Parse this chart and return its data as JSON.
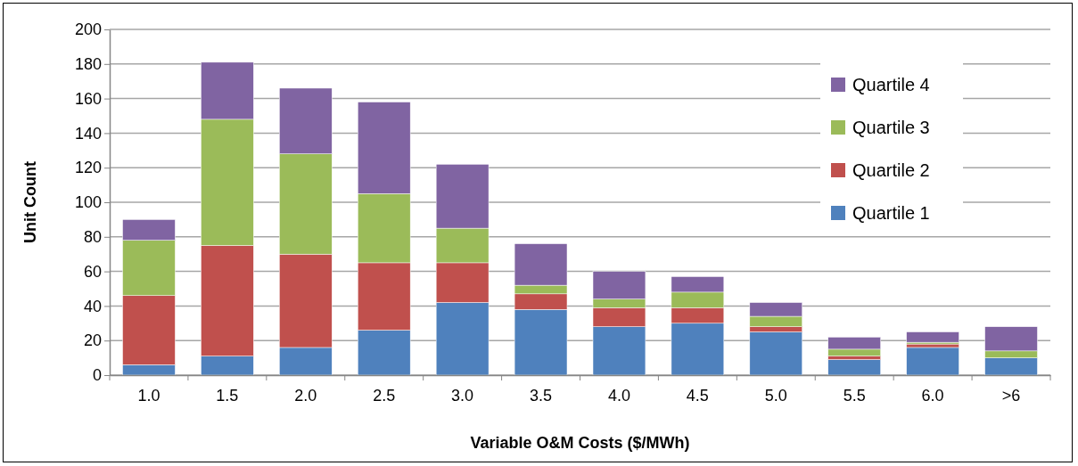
{
  "chart_data": {
    "type": "bar",
    "xlabel": "Variable O&M Costs ($/MWh)",
    "ylabel": "Unit Count",
    "categories": [
      "1.0",
      "1.5",
      "2.0",
      "2.5",
      "3.0",
      "3.5",
      "4.0",
      "4.5",
      "5.0",
      "5.5",
      "6.0",
      ">6"
    ],
    "stacked": true,
    "series": [
      {
        "name": "Quartile 1",
        "color": "#4f81bd",
        "values": [
          6,
          11,
          16,
          26,
          42,
          38,
          28,
          30,
          25,
          9,
          16,
          10
        ]
      },
      {
        "name": "Quartile 2",
        "color": "#c0504d",
        "values": [
          40,
          64,
          54,
          39,
          23,
          9,
          11,
          9,
          3,
          2,
          2,
          0
        ]
      },
      {
        "name": "Quartile 3",
        "color": "#9bbb59",
        "values": [
          32,
          73,
          58,
          40,
          20,
          5,
          5,
          9,
          6,
          4,
          1,
          4
        ]
      },
      {
        "name": "Quartile 4",
        "color": "#8064a2",
        "values": [
          12,
          33,
          38,
          53,
          37,
          24,
          16,
          9,
          8,
          7,
          6,
          14
        ]
      }
    ],
    "ylim": [
      0,
      200
    ],
    "yticks": [
      0,
      20,
      40,
      60,
      80,
      100,
      120,
      140,
      160,
      180,
      200
    ],
    "grid": "y",
    "legend": "top right"
  }
}
